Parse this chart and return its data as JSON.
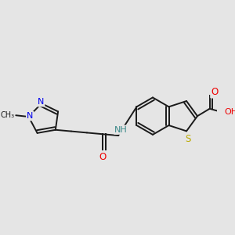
{
  "background_color": "#e5e5e5",
  "bond_color": "#1a1a1a",
  "atom_colors": {
    "N": "#0000ee",
    "O": "#ee0000",
    "S": "#bbaa00",
    "C": "#1a1a1a",
    "NH": "#3a8888"
  },
  "figsize": [
    3.0,
    3.0
  ],
  "dpi": 100
}
